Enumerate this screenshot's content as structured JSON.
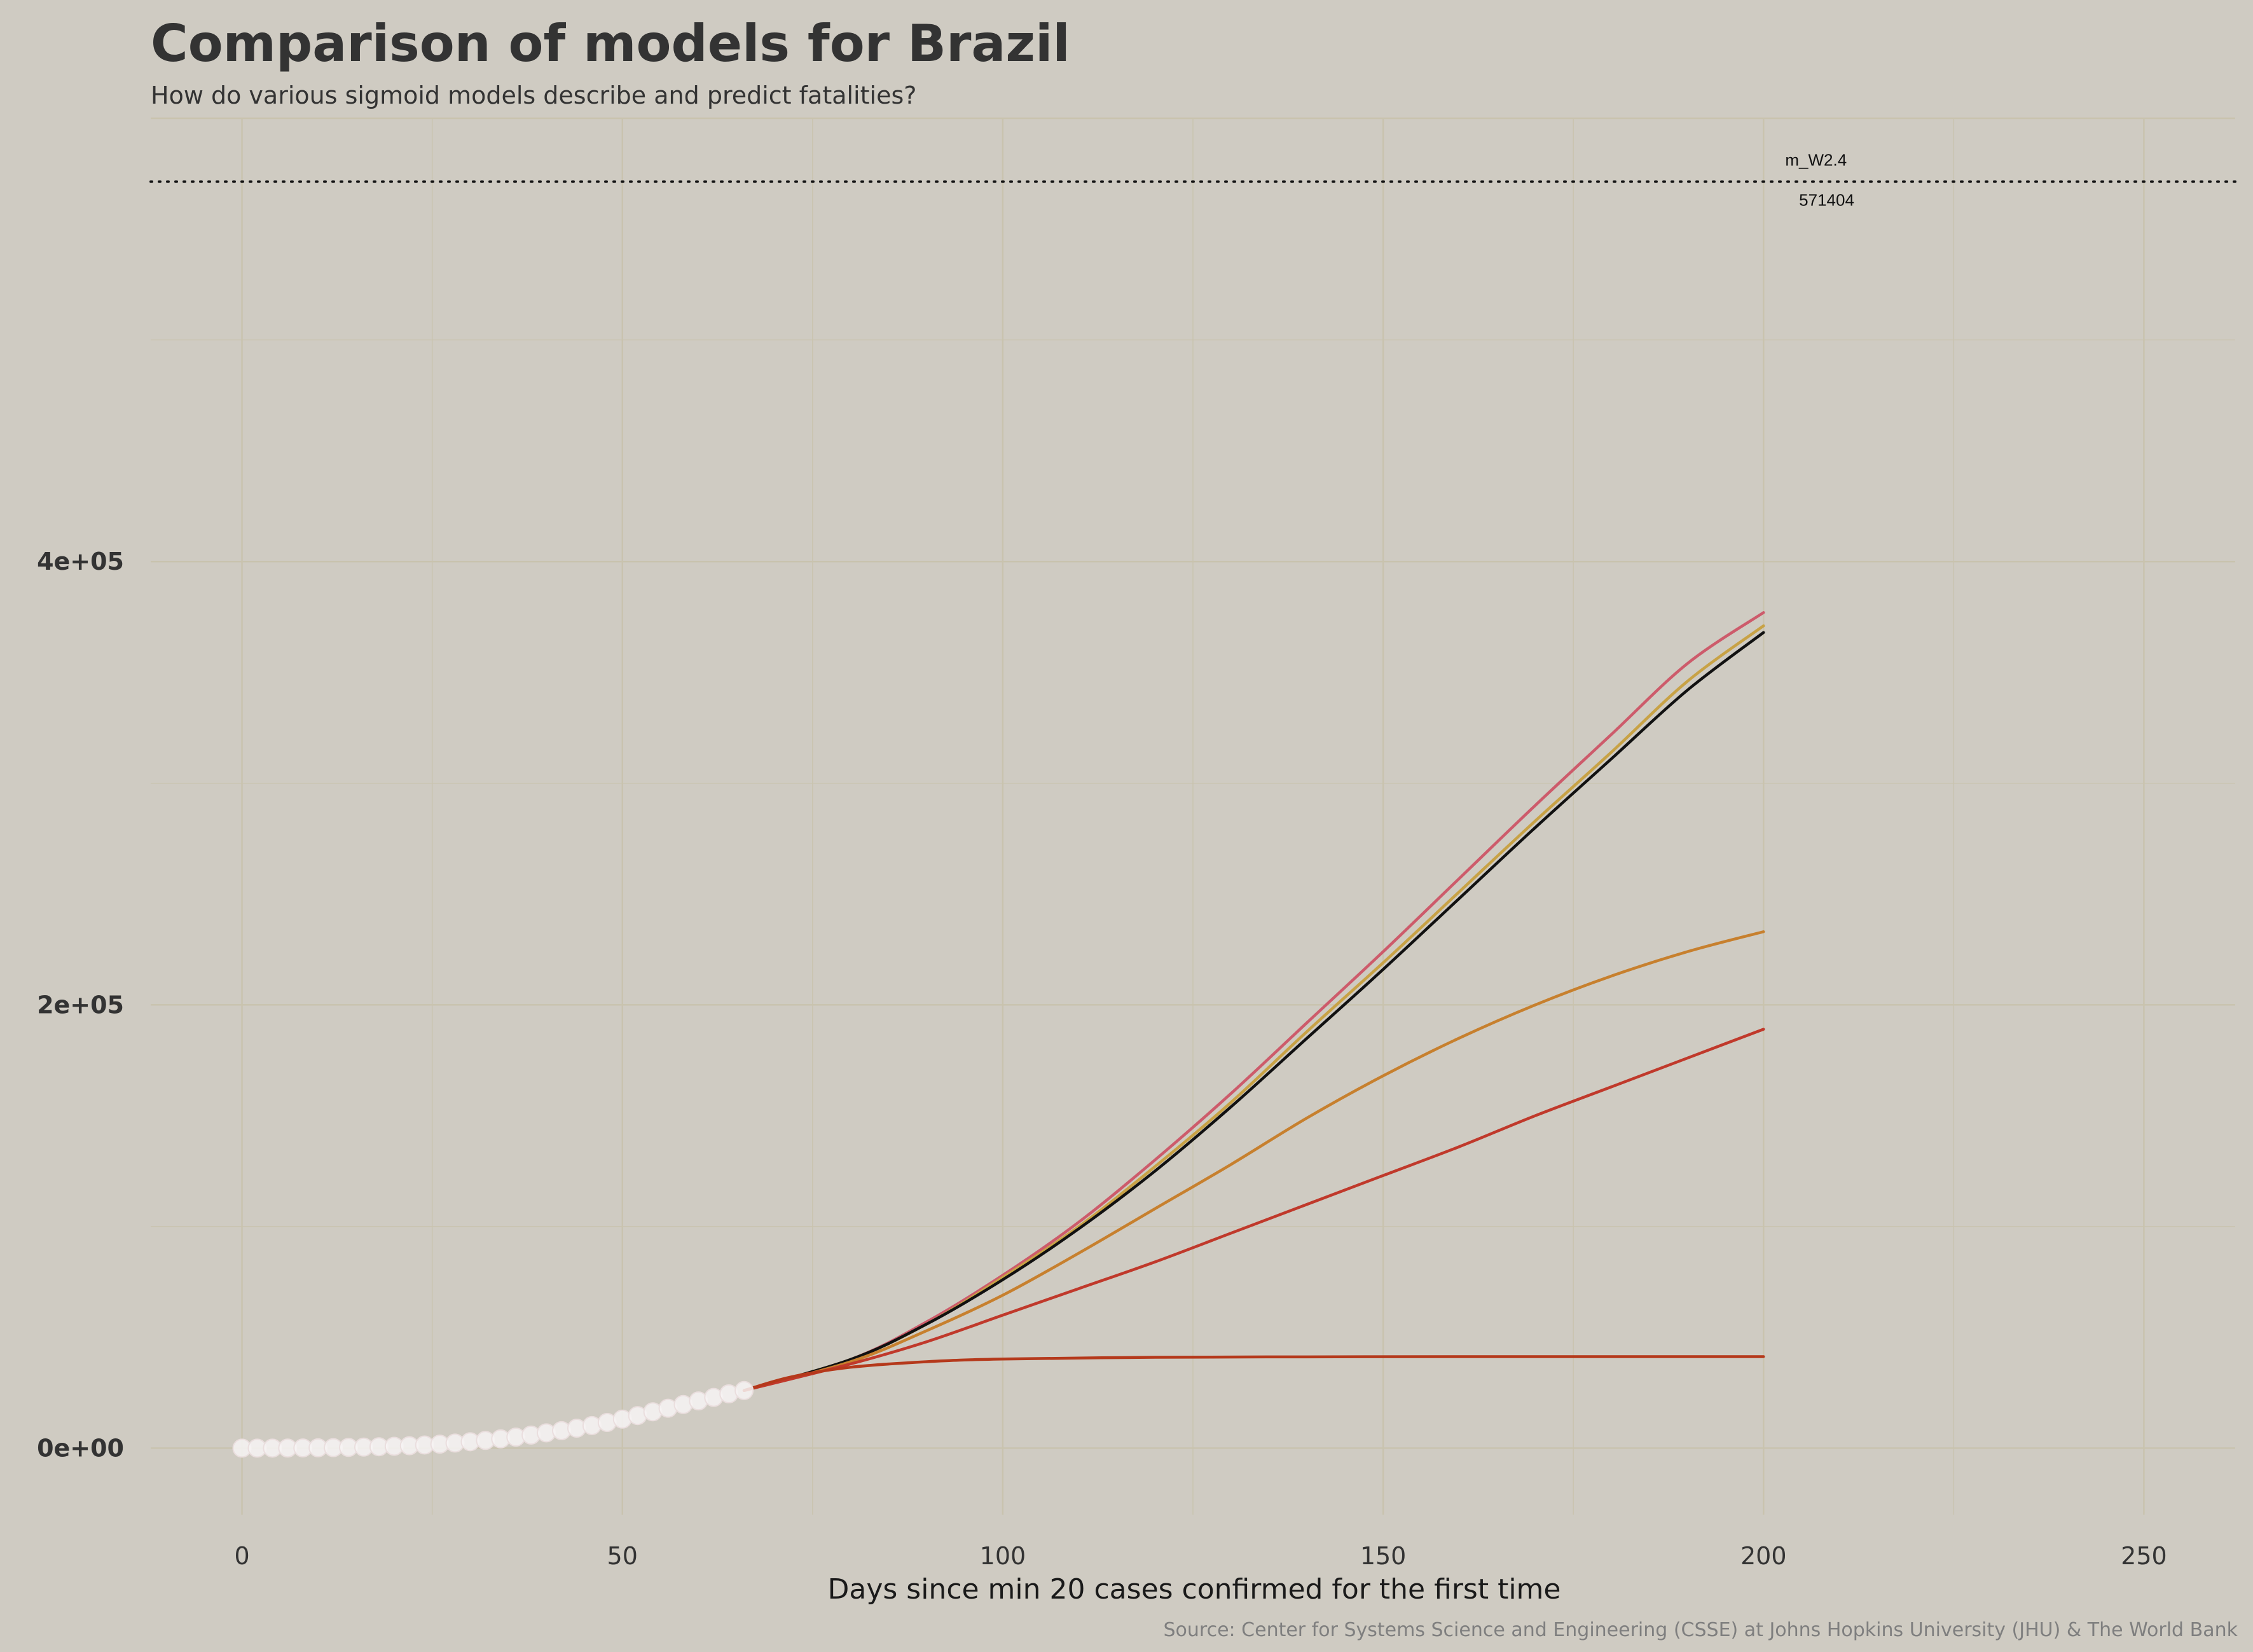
{
  "chart_data": {
    "type": "line",
    "title": "Comparison of models for Brazil",
    "subtitle": "How do various sigmoid models describe and predict fatalities?",
    "caption": "Source: Center for Systems Science and Engineering (CSSE) at Johns Hopkins University (JHU) & The World Bank",
    "xlabel": "Days since min 20 cases confirmed for the first time",
    "ylabel": "",
    "xlim": [
      -12,
      262
    ],
    "ylim": [
      -30000,
      600000
    ],
    "x_ticks": [
      0,
      50,
      100,
      150,
      200,
      250
    ],
    "x_tick_labels": [
      "0",
      "50",
      "100",
      "150",
      "200",
      "250"
    ],
    "y_ticks": [
      0,
      200000,
      400000
    ],
    "y_tick_labels": [
      "0e+00",
      "2e+05",
      "4e+05"
    ],
    "grid": true,
    "observed": {
      "x": [
        0,
        2,
        4,
        6,
        8,
        10,
        12,
        14,
        16,
        18,
        20,
        22,
        24,
        26,
        28,
        30,
        32,
        34,
        36,
        38,
        40,
        42,
        44,
        46,
        48,
        50,
        52,
        54,
        56,
        58,
        60,
        62,
        64,
        66
      ],
      "y": [
        0,
        10,
        30,
        60,
        100,
        160,
        240,
        340,
        470,
        640,
        850,
        1100,
        1400,
        1800,
        2300,
        2900,
        3500,
        4200,
        5000,
        5900,
        6900,
        7900,
        9000,
        10200,
        11600,
        13100,
        14700,
        16400,
        18000,
        19700,
        21300,
        22900,
        24500,
        26000
      ],
      "color": "#f7f4f4"
    },
    "series": [
      {
        "color": "#cd5b6b",
        "x": [
          66,
          80,
          90,
          100,
          110,
          120,
          130,
          140,
          150,
          160,
          170,
          180,
          190,
          200
        ],
        "y": [
          26000,
          40000,
          57000,
          78000,
          102000,
          130000,
          160000,
          192000,
          224000,
          257000,
          290000,
          322000,
          354000,
          377000
        ]
      },
      {
        "color": "#c8a245",
        "x": [
          66,
          80,
          90,
          100,
          110,
          120,
          130,
          140,
          150,
          160,
          170,
          180,
          190,
          200
        ],
        "y": [
          26000,
          40000,
          56000,
          77000,
          100000,
          127000,
          156000,
          188000,
          219000,
          251000,
          283000,
          314000,
          346000,
          371000
        ]
      },
      {
        "color": "#111111",
        "x": [
          66,
          80,
          90,
          100,
          110,
          120,
          130,
          140,
          150,
          160,
          170,
          180,
          190,
          200
        ],
        "y": [
          26000,
          40000,
          56000,
          76000,
          99000,
          125000,
          154000,
          185000,
          216000,
          248000,
          280000,
          311000,
          342000,
          368000
        ]
      },
      {
        "color": "#c7802e",
        "x": [
          66,
          80,
          90,
          100,
          110,
          120,
          130,
          140,
          150,
          160,
          170,
          180,
          190,
          200
        ],
        "y": [
          26000,
          39000,
          53000,
          69000,
          88000,
          108000,
          128000,
          149000,
          168000,
          185000,
          200000,
          213000,
          224000,
          233000
        ]
      },
      {
        "color": "#c0392b",
        "x": [
          66,
          80,
          90,
          100,
          110,
          120,
          130,
          140,
          150,
          160,
          170,
          180,
          190,
          200
        ],
        "y": [
          26000,
          38000,
          48000,
          60000,
          72000,
          84000,
          97000,
          110000,
          123000,
          136000,
          150000,
          163000,
          176000,
          189000
        ]
      },
      {
        "color": "#b5391b",
        "x": [
          66,
          72,
          80,
          90,
          100,
          120,
          140,
          160,
          180,
          200
        ],
        "y": [
          26000,
          32000,
          36500,
          39000,
          40200,
          41000,
          41200,
          41300,
          41300,
          41300
        ]
      }
    ],
    "annotations": [
      {
        "label": "m_W2.4",
        "value": "571404",
        "y": 571404
      }
    ]
  }
}
